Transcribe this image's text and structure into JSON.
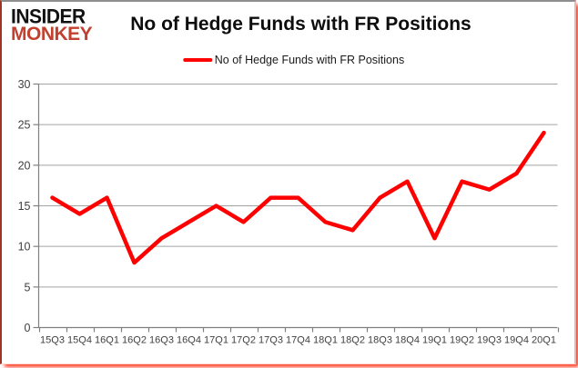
{
  "logo": {
    "line1": "INSIDER",
    "line2": "MONKEY",
    "line2_color": "#c2402f"
  },
  "header": {
    "title": "No of Hedge Funds with FR Positions"
  },
  "legend": {
    "label": "No of Hedge Funds with FR Positions",
    "line_color": "#ff0000"
  },
  "colors": {
    "series_line": "#ff0000",
    "gridline": "#a3a3a3",
    "axis": "#808080",
    "tick_label": "#404040",
    "frame_shadow": "#ff1e00"
  },
  "chart_data": {
    "type": "line",
    "title": "No of Hedge Funds with FR Positions",
    "categories": [
      "15Q3",
      "15Q4",
      "16Q1",
      "16Q2",
      "16Q3",
      "16Q4",
      "17Q1",
      "17Q2",
      "17Q3",
      "17Q4",
      "18Q1",
      "18Q2",
      "18Q3",
      "18Q4",
      "19Q1",
      "19Q2",
      "19Q3",
      "19Q4",
      "20Q1"
    ],
    "series": [
      {
        "name": "No of Hedge Funds with FR Positions",
        "color": "#ff0000",
        "values": [
          16,
          14,
          16,
          8,
          11,
          13,
          15,
          13,
          16,
          16,
          13,
          12,
          16,
          18,
          11,
          18,
          17,
          19,
          24
        ]
      }
    ],
    "xlabel": "",
    "ylabel": "",
    "ylim": [
      0,
      30
    ],
    "ytick_step": 5,
    "yticks": [
      "0",
      "5",
      "10",
      "15",
      "20",
      "25",
      "30"
    ],
    "grid": true,
    "legend_position": "top-center"
  }
}
